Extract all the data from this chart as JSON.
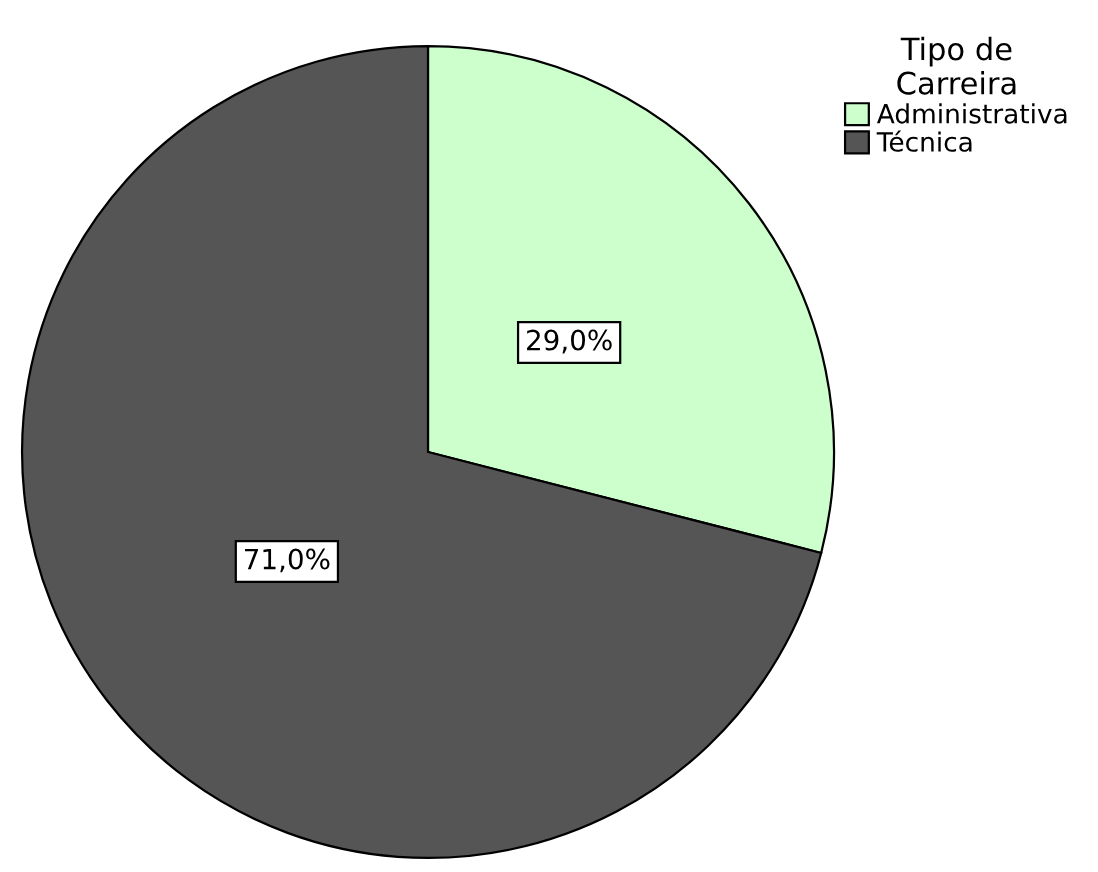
{
  "chart_data": {
    "type": "pie",
    "legend_title": "Tipo de\nCarreira",
    "categories": [
      "Administrativa",
      "Técnica"
    ],
    "values": [
      29.0,
      71.0
    ],
    "colors": [
      "#ccffcc",
      "#555555"
    ],
    "value_labels": [
      "29,0%",
      "71,0%"
    ],
    "legend": "top right"
  }
}
